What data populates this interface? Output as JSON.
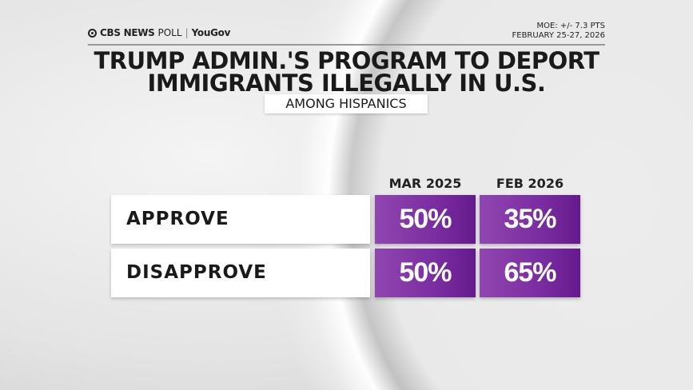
{
  "header": {
    "logo_cbs": "CBS NEWS",
    "logo_poll": "POLL",
    "logo_partner": "YouGov",
    "moe": "MOE: +/- 7.3 PTS",
    "dates": "FEBRUARY 25-27, 2026"
  },
  "title_line1": "TRUMP ADMIN.'S PROGRAM TO DEPORT",
  "title_line2": "IMMIGRANTS ILLEGALLY IN U.S.",
  "subtitle": "AMONG HISPANICS",
  "colors": {
    "cell_purple_light": "#9046b0",
    "cell_purple_dark": "#651a8c"
  },
  "chart_data": {
    "type": "table",
    "title": "TRUMP ADMIN.'S PROGRAM TO DEPORT IMMIGRANTS ILLEGALLY IN U.S.",
    "subtitle": "AMONG HISPANICS",
    "columns": [
      "MAR 2025",
      "FEB 2026"
    ],
    "rows": [
      {
        "label": "APPROVE",
        "values": [
          "50%",
          "35%"
        ]
      },
      {
        "label": "DISAPPROVE",
        "values": [
          "50%",
          "65%"
        ]
      }
    ]
  }
}
